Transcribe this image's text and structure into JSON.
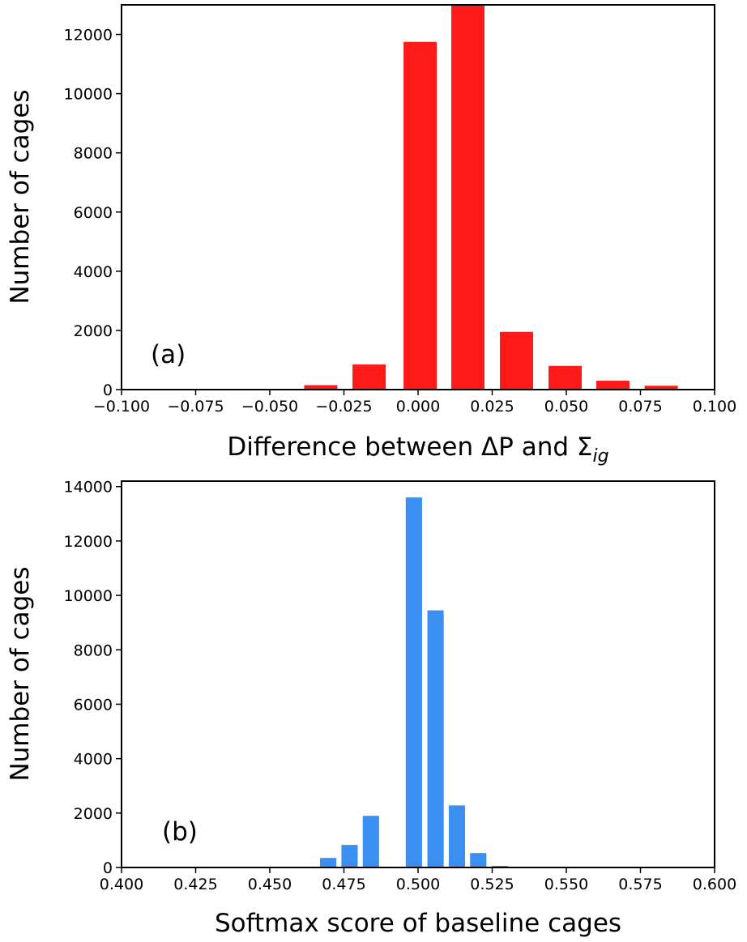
{
  "chart_data": [
    {
      "type": "bar",
      "panel_label": "(a)",
      "xlabel": "Difference between ΔP and Σ",
      "xlabel_subscript": "ig",
      "ylabel": "Number of cages",
      "xlim": [
        -0.1,
        0.1
      ],
      "ylim": [
        0,
        13000
      ],
      "xticks": [
        -0.1,
        -0.075,
        -0.05,
        -0.025,
        0.0,
        0.025,
        0.05,
        0.075,
        0.1
      ],
      "xtick_labels": [
        "−0.100",
        "−0.075",
        "−0.050",
        "−0.025",
        "0.000",
        "0.025",
        "0.050",
        "0.075",
        "0.100"
      ],
      "yticks": [
        0,
        2000,
        4000,
        6000,
        8000,
        10000,
        12000
      ],
      "ytick_labels": [
        "0",
        "2000",
        "4000",
        "6000",
        "8000",
        "10000",
        "12000"
      ],
      "bar_width": 0.0112,
      "x": [
        -0.0328,
        -0.0165,
        0.0007,
        0.0168,
        0.0332,
        0.0496,
        0.0657,
        0.082
      ],
      "values": [
        150,
        850,
        11750,
        13000,
        1950,
        800,
        300,
        130
      ],
      "color": "#ff1a1a",
      "grid": false
    },
    {
      "type": "bar",
      "panel_label": "(b)",
      "xlabel": "Softmax score of baseline cages",
      "ylabel": "Number of cages",
      "xlim": [
        0.4,
        0.6
      ],
      "ylim": [
        0,
        14200
      ],
      "xticks": [
        0.4,
        0.425,
        0.45,
        0.475,
        0.5,
        0.525,
        0.55,
        0.575,
        0.6
      ],
      "xtick_labels": [
        "0.400",
        "0.425",
        "0.450",
        "0.475",
        "0.500",
        "0.525",
        "0.550",
        "0.575",
        "0.600"
      ],
      "yticks": [
        0,
        2000,
        4000,
        6000,
        8000,
        10000,
        12000,
        14000
      ],
      "ytick_labels": [
        "0",
        "2000",
        "4000",
        "6000",
        "8000",
        "10000",
        "12000",
        "14000"
      ],
      "bar_width": 0.0055,
      "x": [
        0.4625,
        0.4697,
        0.4769,
        0.4841,
        0.4913,
        0.4986,
        0.5059,
        0.5131,
        0.5203,
        0.5276
      ],
      "values": [
        30,
        350,
        830,
        1900,
        0,
        13600,
        9450,
        2280,
        530,
        60
      ],
      "color": "#3a8ff0",
      "grid": false
    }
  ]
}
